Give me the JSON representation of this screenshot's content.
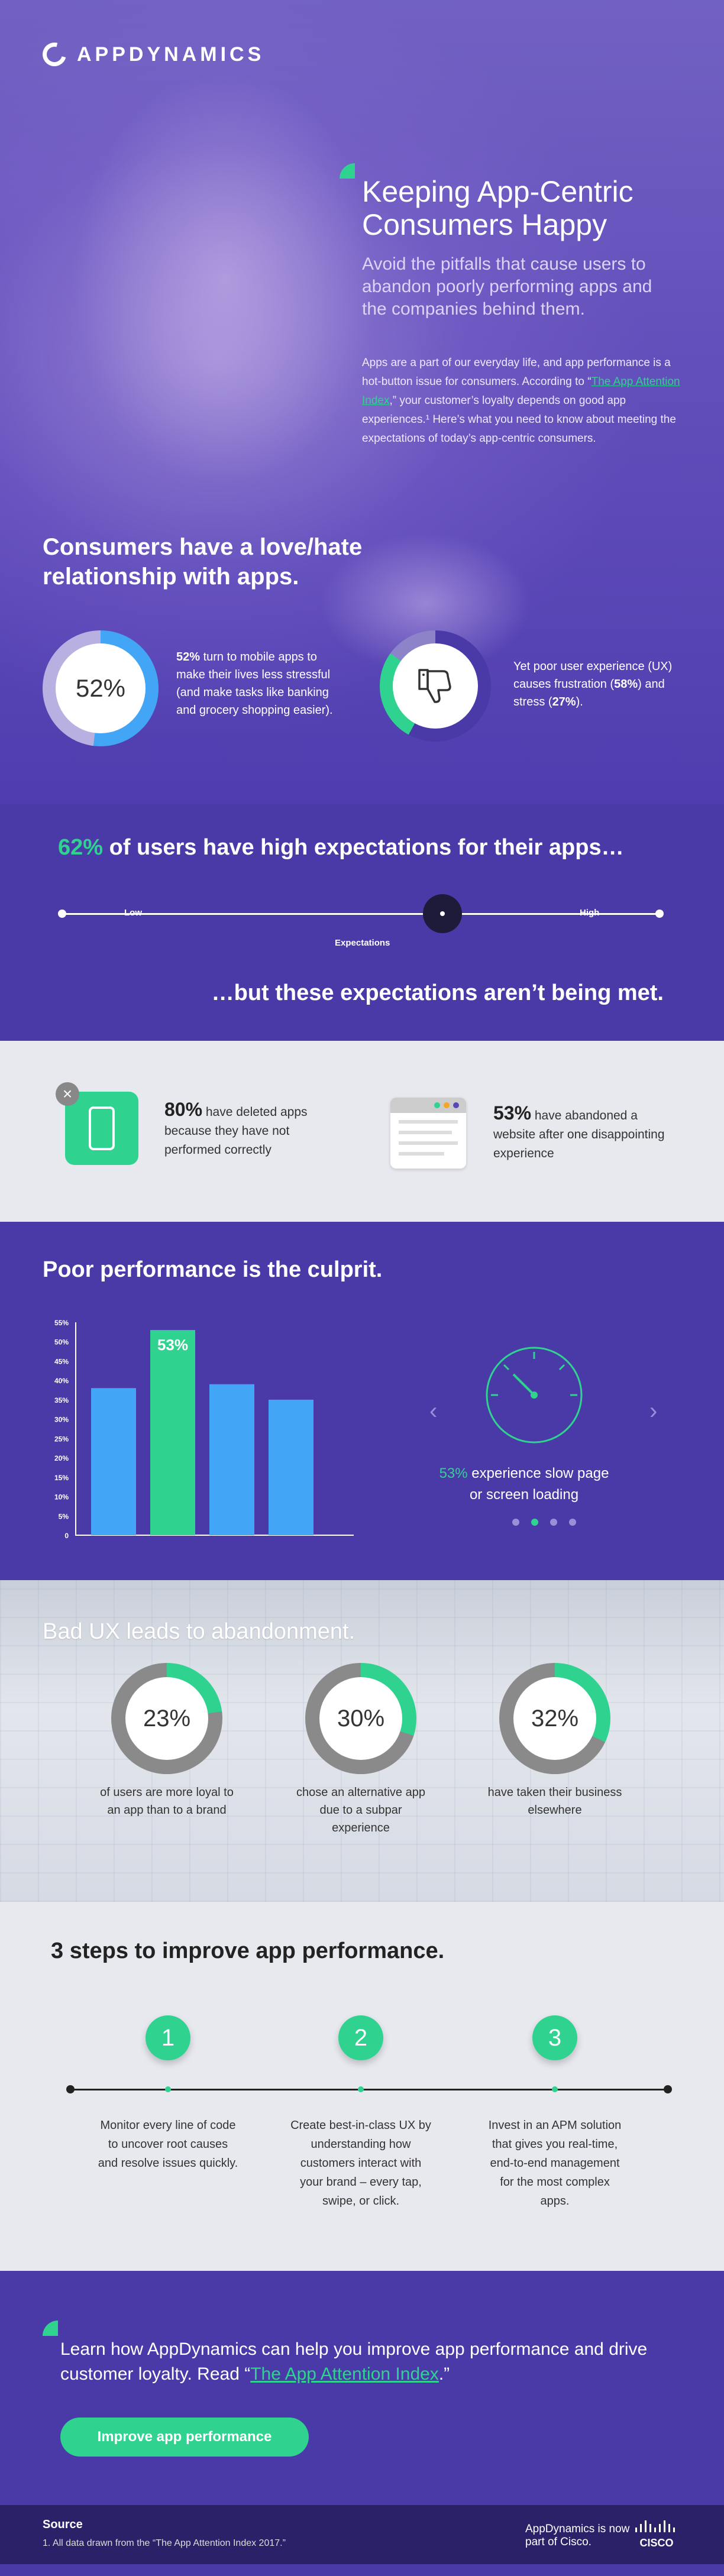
{
  "brand": {
    "name": "APPDYNAMICS",
    "accent": "#2fd38f",
    "purple": "#4a3aa8"
  },
  "hero": {
    "title": "Keeping App-Centric Consumers Happy",
    "subtitle": "Avoid the pitfalls that cause users to abandon poorly performing apps and the companies behind them.",
    "body_pre": "Apps are a part of our everyday life, and app performance is a hot-button issue for consumers. According to “",
    "body_link": "The App Attention Index",
    "body_post": ",” your customer’s loyalty depends on good app experiences.¹ Here’s what you need to know about meeting the expectations of today’s app-centric consumers.",
    "heading": "Consumers have a love/hate relationship with apps.",
    "stat1_value": "52%",
    "stat1_bold": "52%",
    "stat1_text": " turn to mobile apps to make their lives less stressful (and make tasks like banking and grocery shopping easier).",
    "stat1_fraction": 0.52,
    "stat2_pre": "Yet poor user experience (UX) causes frustration (",
    "stat2_b1": "58%",
    "stat2_mid": ") and stress (",
    "stat2_b2": "27%",
    "stat2_post": ").",
    "stat2_icon": "thumbs-down-icon"
  },
  "expectations": {
    "title_hl": "62%",
    "title_rest": " of users have high expectations for their apps…",
    "low": "Low",
    "high": "High",
    "axis_label": "Expectations",
    "level": 0.62,
    "tail": "…but these expectations aren’t being met."
  },
  "deleted": {
    "stat1_bold": "80%",
    "stat1_text": " have deleted apps because they have not performed correctly",
    "stat2_bold": "53%",
    "stat2_text": " have abandoned a website after one disappointing experience"
  },
  "performance": {
    "title": "Poor performance is the culprit.",
    "caption_hl": "53%",
    "caption_rest": " experience slow page or screen loading",
    "pager_count": 4,
    "pager_active": 1
  },
  "chart_data": {
    "type": "bar",
    "categories": [
      "",
      "",
      "",
      ""
    ],
    "values": [
      38,
      53,
      39,
      35
    ],
    "highlight_index": 1,
    "data_labels": [
      "",
      "53%",
      "",
      ""
    ],
    "yticks": [
      "0",
      "5%",
      "10%",
      "15%",
      "20%",
      "25%",
      "30%",
      "35%",
      "40%",
      "45%",
      "50%",
      "55%"
    ],
    "ylim": [
      0,
      55
    ],
    "title": "",
    "xlabel": "",
    "ylabel": "",
    "colors": {
      "bar": "#42a5f5",
      "highlight": "#2fd38f"
    }
  },
  "badux": {
    "title": "Bad UX leads to abandonment.",
    "stats": [
      {
        "value": "23%",
        "fraction": 0.23,
        "caption": "of users are more loyal to an app than to a brand"
      },
      {
        "value": "30%",
        "fraction": 0.3,
        "caption": "chose an alternative app due to a subpar experience"
      },
      {
        "value": "32%",
        "fraction": 0.32,
        "caption": "have taken their business elsewhere"
      }
    ]
  },
  "steps": {
    "title": "3 steps to improve app performance.",
    "items": [
      {
        "num": "1",
        "text": "Monitor every line of code to uncover root causes and resolve issues quickly."
      },
      {
        "num": "2",
        "text": "Create best-in-class UX by understanding how customers interact with your brand – every tap, swipe, or click."
      },
      {
        "num": "3",
        "text": "Invest in an APM solution that gives you real-time, end-to-end management for the most complex apps."
      }
    ]
  },
  "cta": {
    "text_pre": "Learn how AppDynamics can help you improve app performance and drive customer loyalty. Read “",
    "link": "The App Attention Index",
    "text_post": ".”",
    "button": "Improve app performance"
  },
  "footer": {
    "source_title": "Source",
    "source_text": "1. All data drawn from the “The App Attention Index 2017.”",
    "cisco_text": "AppDynamics is now part of Cisco.",
    "cisco_logo": "CISCO"
  }
}
